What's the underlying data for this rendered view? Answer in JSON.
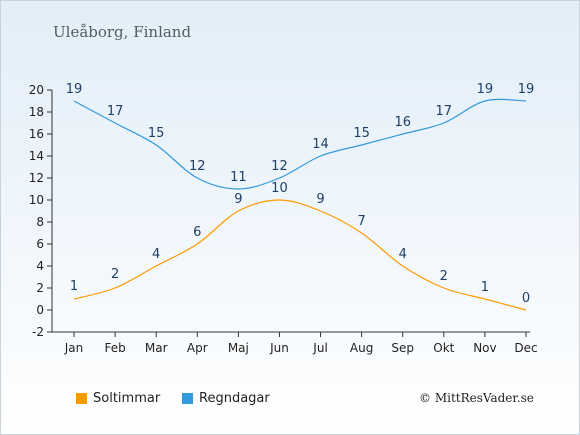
{
  "header": {
    "title": "Uleåborg, Finland"
  },
  "footer": {
    "copyright": "© MittResVader.se"
  },
  "chart_data": {
    "type": "line",
    "categories": [
      "Jan",
      "Feb",
      "Mar",
      "Apr",
      "Maj",
      "Jun",
      "Jul",
      "Aug",
      "Sep",
      "Okt",
      "Nov",
      "Dec"
    ],
    "series": [
      {
        "name": "Soltimmar",
        "color": "#ff9900",
        "values": [
          1,
          2,
          4,
          6,
          9,
          10,
          9,
          7,
          4,
          2,
          1,
          0
        ]
      },
      {
        "name": "Regndagar",
        "color": "#3399dd",
        "values": [
          19,
          17,
          15,
          12,
          11,
          12,
          14,
          15,
          16,
          17,
          19,
          19
        ]
      }
    ],
    "ylim": [
      -2,
      20
    ],
    "yticks": [
      -2,
      0,
      2,
      4,
      6,
      8,
      10,
      12,
      14,
      16,
      18,
      20
    ],
    "grid": false,
    "legend": "bottom-left"
  }
}
